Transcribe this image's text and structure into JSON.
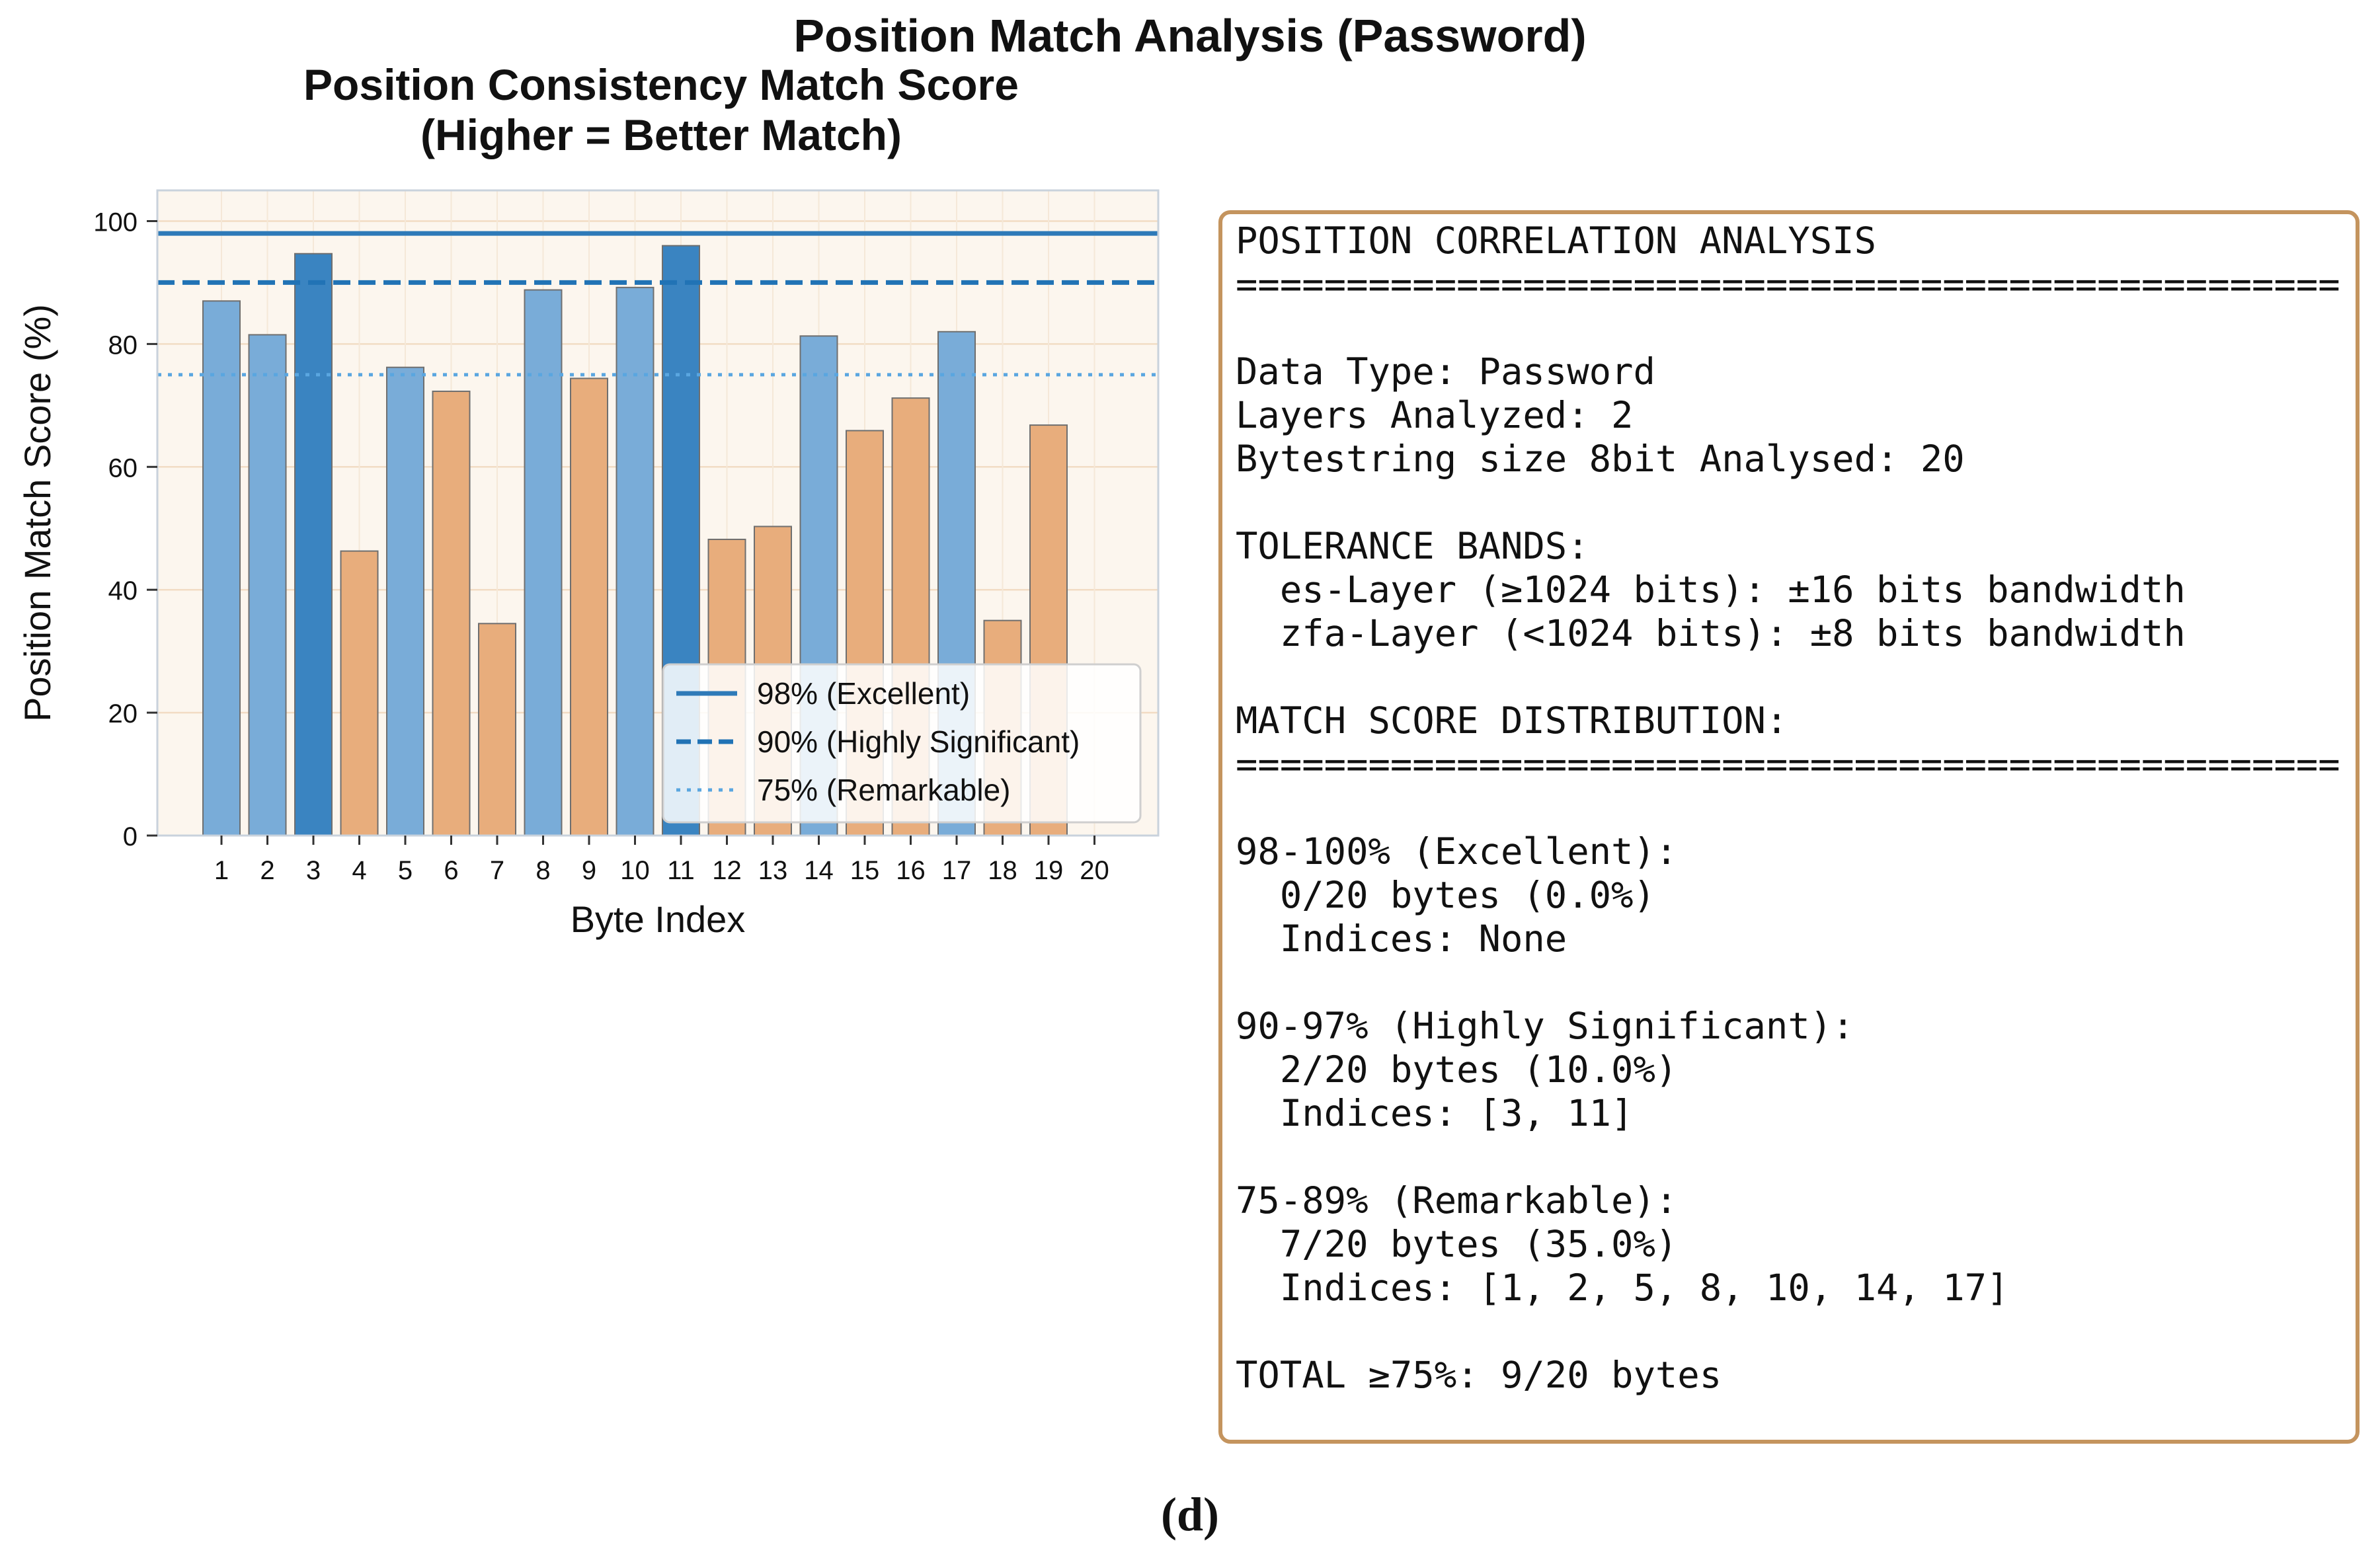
{
  "figure": {
    "title": "Position Match Analysis (Password)",
    "subfigure_label": "(d)"
  },
  "chart_data": {
    "type": "bar",
    "title_lines": [
      "Position Consistency Match Score",
      "(Higher = Better Match)"
    ],
    "xlabel": "Byte Index",
    "ylabel": "Position Match Score (%)",
    "ylim": [
      0,
      105
    ],
    "yticks": [
      0,
      20,
      40,
      60,
      80,
      100
    ],
    "categories": [
      "1",
      "2",
      "3",
      "4",
      "5",
      "6",
      "7",
      "8",
      "9",
      "10",
      "11",
      "12",
      "13",
      "14",
      "15",
      "16",
      "17",
      "18",
      "19",
      "20"
    ],
    "values": [
      87,
      81.5,
      94.7,
      46.3,
      76.2,
      72.3,
      34.5,
      88.8,
      74.4,
      89.2,
      96,
      48.2,
      50.3,
      81.3,
      65.9,
      71.2,
      82,
      35,
      66.8,
      0
    ],
    "bar_colors": {
      "below_75": "#e8ad7c",
      "75_to_89": "#79acd8",
      "90_to_97": "#3a84c1"
    },
    "reference_lines": [
      {
        "value": 98,
        "label": "98% (Excellent)",
        "style": "solid",
        "color": "#2e7ab8"
      },
      {
        "value": 90,
        "label": "90% (Highly Significant)",
        "style": "dashed",
        "color": "#2173b5"
      },
      {
        "value": 75,
        "label": "75% (Remarkable)",
        "style": "dotted",
        "color": "#5aa6e0"
      }
    ],
    "grid": true,
    "legend_position": "lower-right"
  },
  "analysis_panel": {
    "lines": [
      "POSITION CORRELATION ANALYSIS",
      "==================================================",
      "",
      "Data Type: Password",
      "Layers Analyzed: 2",
      "Bytestring size 8bit Analysed: 20",
      "",
      "TOLERANCE BANDS:",
      "  es-Layer (≥1024 bits): ±16 bits bandwidth",
      "  zfa-Layer (<1024 bits): ±8 bits bandwidth",
      "",
      "MATCH SCORE DISTRIBUTION:",
      "==================================================",
      "",
      "98-100% (Excellent):",
      "  0/20 bytes (0.0%)",
      "  Indices: None",
      "",
      "90-97% (Highly Significant):",
      "  2/20 bytes (10.0%)",
      "  Indices: [3, 11]",
      "",
      "75-89% (Remarkable):",
      "  7/20 bytes (35.0%)",
      "  Indices: [1, 2, 5, 8, 10, 14, 17]",
      "",
      "TOTAL ≥75%: 9/20 bytes"
    ]
  }
}
